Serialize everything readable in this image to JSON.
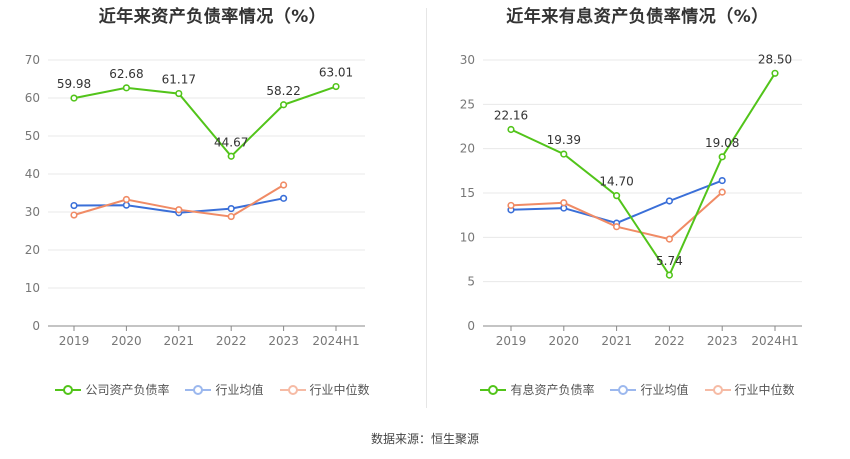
{
  "source_text": "数据来源：恒生聚源",
  "colors": {
    "company": "#52c41a",
    "average": "#3a6fd8",
    "median": "#f08b65",
    "grid": "#e8e8e8",
    "axis": "#888888"
  },
  "chart_data": [
    {
      "type": "line",
      "title": "近年来资产负债率情况（%）",
      "categories": [
        "2019",
        "2020",
        "2021",
        "2022",
        "2023",
        "2024H1"
      ],
      "ylim": [
        0,
        70
      ],
      "yticks": [
        0,
        10,
        20,
        30,
        40,
        50,
        60,
        70
      ],
      "grid": true,
      "legend": "bottom",
      "legend_labels": [
        "公司资产负债率",
        "行业均值",
        "行业中位数"
      ],
      "series": [
        {
          "name": "公司资产负债率",
          "values": [
            59.98,
            62.68,
            61.17,
            44.67,
            58.22,
            63.01
          ],
          "labels": [
            "59.98",
            "62.68",
            "61.17",
            "44.67",
            "58.22",
            "63.01"
          ],
          "color": "#52c41a"
        },
        {
          "name": "行业均值",
          "values": [
            31.7,
            31.8,
            29.8,
            30.9,
            33.6,
            null
          ],
          "color": "#3a6fd8"
        },
        {
          "name": "行业中位数",
          "values": [
            29.2,
            33.3,
            30.6,
            28.8,
            37.1,
            null
          ],
          "color": "#f08b65"
        }
      ]
    },
    {
      "type": "line",
      "title": "近年来有息资产负债率情况（%）",
      "categories": [
        "2019",
        "2020",
        "2021",
        "2022",
        "2023",
        "2024H1"
      ],
      "ylim": [
        0,
        30
      ],
      "yticks": [
        0,
        5,
        10,
        15,
        20,
        25,
        30
      ],
      "grid": true,
      "legend": "bottom",
      "legend_labels": [
        "有息资产负债率",
        "行业均值",
        "行业中位数"
      ],
      "series": [
        {
          "name": "有息资产负债率",
          "values": [
            22.16,
            19.39,
            14.7,
            5.74,
            19.08,
            28.5
          ],
          "labels": [
            "22.16",
            "19.39",
            "14.70",
            "5.74",
            "19.08",
            "28.50"
          ],
          "color": "#52c41a"
        },
        {
          "name": "行业均值",
          "values": [
            13.1,
            13.3,
            11.6,
            14.1,
            16.4,
            null
          ],
          "color": "#3a6fd8"
        },
        {
          "name": "行业中位数",
          "values": [
            13.6,
            13.9,
            11.2,
            9.8,
            15.1,
            null
          ],
          "color": "#f08b65"
        }
      ]
    }
  ]
}
